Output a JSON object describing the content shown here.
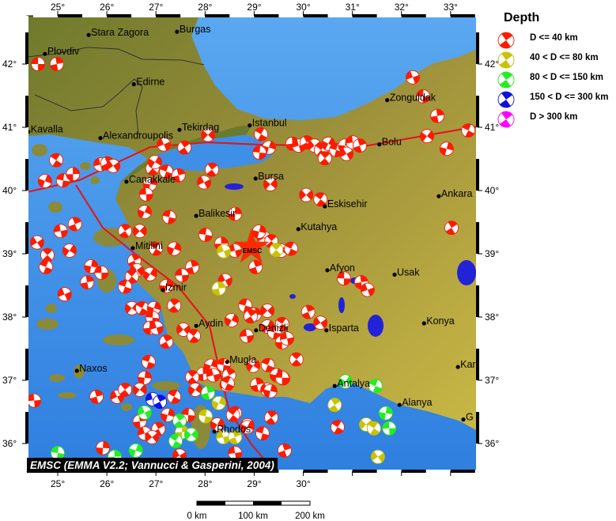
{
  "map": {
    "lon_range": [
      24.37,
      33.55
    ],
    "lat_range": [
      35.56,
      42.76
    ],
    "land_color": "#8a8a3a",
    "sea_color": "#3f8fe6",
    "fault_color": "#e8101a"
  },
  "axes": {
    "lon_ticks": [
      25,
      26,
      27,
      28,
      29,
      30,
      31,
      32,
      33
    ],
    "lon_labels": [
      "25°",
      "26°",
      "27°",
      "28°",
      "29°",
      "30°",
      "31°",
      "32°",
      "33°"
    ],
    "lat_ticks": [
      42,
      41,
      40,
      39,
      38,
      37,
      36
    ],
    "lat_labels": [
      "42°",
      "41°",
      "40°",
      "39°",
      "38°",
      "37°",
      "36°"
    ]
  },
  "legend": {
    "title": "Depth",
    "items": [
      {
        "label": "D <= 40 km",
        "color": "#ff1a00"
      },
      {
        "label": "40 < D <= 80 km",
        "color": "#c8c400"
      },
      {
        "label": "80 < D <= 150 km",
        "color": "#22ee22"
      },
      {
        "label": "150 < D <= 300 km",
        "color": "#1010e0"
      },
      {
        "label": "D > 300 km",
        "color": "#ff00ff"
      }
    ]
  },
  "cities": [
    {
      "name": "Stara Zagora",
      "lon": 25.63,
      "lat": 42.46
    },
    {
      "name": "Burgas",
      "lon": 27.43,
      "lat": 42.51
    },
    {
      "name": "Plovdiv",
      "lon": 24.74,
      "lat": 42.16
    },
    {
      "name": "Edirne",
      "lon": 26.55,
      "lat": 41.68
    },
    {
      "name": "Kavalla",
      "lon": 24.4,
      "lat": 40.93
    },
    {
      "name": "Alexandroupolis",
      "lon": 25.87,
      "lat": 40.83
    },
    {
      "name": "Tekirdag",
      "lon": 27.48,
      "lat": 40.96
    },
    {
      "name": "Istanbul",
      "lon": 28.91,
      "lat": 41.03
    },
    {
      "name": "Zonguldak",
      "lon": 31.71,
      "lat": 41.43
    },
    {
      "name": "Bolu",
      "lon": 31.55,
      "lat": 40.73
    },
    {
      "name": "Ankara",
      "lon": 32.76,
      "lat": 39.91
    },
    {
      "name": "Eskisehir",
      "lon": 30.44,
      "lat": 39.75
    },
    {
      "name": "Bursa",
      "lon": 29.03,
      "lat": 40.19
    },
    {
      "name": "Canakkale",
      "lon": 26.4,
      "lat": 40.14
    },
    {
      "name": "Balikesir",
      "lon": 27.82,
      "lat": 39.6
    },
    {
      "name": "Kutahya",
      "lon": 29.9,
      "lat": 39.39
    },
    {
      "name": "Mitilini",
      "lon": 26.53,
      "lat": 39.09
    },
    {
      "name": "Izmir",
      "lon": 27.14,
      "lat": 38.43
    },
    {
      "name": "Afyon",
      "lon": 30.49,
      "lat": 38.74
    },
    {
      "name": "Usak",
      "lon": 31.86,
      "lat": 38.67
    },
    {
      "name": "Aydin",
      "lon": 27.82,
      "lat": 37.86
    },
    {
      "name": "Denizli",
      "lon": 29.04,
      "lat": 37.79
    },
    {
      "name": "Isparta",
      "lon": 30.47,
      "lat": 37.79
    },
    {
      "name": "Konya",
      "lon": 32.46,
      "lat": 37.9
    },
    {
      "name": "Mugla",
      "lon": 28.45,
      "lat": 37.29
    },
    {
      "name": "Naxos",
      "lon": 25.39,
      "lat": 37.15
    },
    {
      "name": "Rhodos",
      "lon": 28.19,
      "lat": 36.19
    },
    {
      "name": "Antalya",
      "lon": 30.64,
      "lat": 36.91
    },
    {
      "name": "Alanya",
      "lon": 31.96,
      "lat": 36.61
    },
    {
      "name": "Karaman",
      "lon": 33.15,
      "lat": 37.21
    },
    {
      "name": "G",
      "lon": 33.26,
      "lat": 36.38
    }
  ],
  "epicenter": {
    "label": "EMSC",
    "lon": 28.94,
    "lat": 39.1
  },
  "events": [
    [
      24.6,
      42.0,
      0
    ],
    [
      24.98,
      42.0,
      0
    ],
    [
      27.16,
      40.73,
      0
    ],
    [
      27.58,
      40.68,
      0
    ],
    [
      28.06,
      40.88,
      0
    ],
    [
      24.97,
      40.48,
      0
    ],
    [
      24.74,
      40.15,
      0
    ],
    [
      25.11,
      40.16,
      0
    ],
    [
      25.31,
      40.26,
      0
    ],
    [
      25.87,
      40.41,
      0
    ],
    [
      26.01,
      40.43,
      0
    ],
    [
      26.13,
      40.39,
      0
    ],
    [
      26.93,
      40.35,
      0
    ],
    [
      26.98,
      40.45,
      0
    ],
    [
      27.21,
      40.3,
      0
    ],
    [
      26.88,
      40.1,
      0
    ],
    [
      26.8,
      39.94,
      0
    ],
    [
      27.46,
      40.24,
      0
    ],
    [
      27.98,
      40.13,
      0
    ],
    [
      28.14,
      40.33,
      0
    ],
    [
      29.33,
      40.1,
      0
    ],
    [
      29.14,
      40.89,
      0
    ],
    [
      29.3,
      40.68,
      0
    ],
    [
      29.11,
      40.6,
      0
    ],
    [
      29.78,
      40.74,
      0
    ],
    [
      29.91,
      40.71,
      0
    ],
    [
      30.07,
      40.76,
      0
    ],
    [
      30.23,
      40.71,
      0
    ],
    [
      30.36,
      40.64,
      0
    ],
    [
      30.51,
      40.74,
      0
    ],
    [
      30.67,
      40.64,
      0
    ],
    [
      30.85,
      40.71,
      0
    ],
    [
      31.01,
      40.76,
      0
    ],
    [
      31.15,
      40.71,
      0
    ],
    [
      30.88,
      40.58,
      0
    ],
    [
      30.44,
      40.51,
      0
    ],
    [
      32.52,
      40.86,
      0
    ],
    [
      33.36,
      40.95,
      0
    ],
    [
      32.92,
      40.66,
      0
    ],
    [
      32.44,
      41.49,
      0
    ],
    [
      32.73,
      41.18,
      0
    ],
    [
      32.23,
      41.79,
      0
    ],
    [
      33.02,
      39.41,
      0
    ],
    [
      30.06,
      39.93,
      0
    ],
    [
      30.35,
      39.86,
      0
    ],
    [
      26.77,
      39.66,
      0
    ],
    [
      27.27,
      39.58,
      0
    ],
    [
      28.61,
      39.63,
      0
    ],
    [
      25.06,
      39.36,
      0
    ],
    [
      25.35,
      39.47,
      0
    ],
    [
      24.58,
      39.18,
      0
    ],
    [
      24.79,
      38.98,
      0
    ],
    [
      25.24,
      39.05,
      0
    ],
    [
      24.76,
      38.79,
      0
    ],
    [
      25.68,
      38.8,
      0
    ],
    [
      25.89,
      38.7,
      0
    ],
    [
      25.6,
      38.55,
      0
    ],
    [
      25.14,
      38.36,
      0
    ],
    [
      26.37,
      39.36,
      0
    ],
    [
      26.67,
      39.36,
      0
    ],
    [
      27.0,
      39.08,
      0
    ],
    [
      27.37,
      39.08,
      0
    ],
    [
      28.01,
      39.3,
      0
    ],
    [
      28.33,
      39.16,
      0
    ],
    [
      28.61,
      39.05,
      0
    ],
    [
      26.56,
      38.89,
      0
    ],
    [
      26.61,
      38.74,
      0
    ],
    [
      26.51,
      38.64,
      0
    ],
    [
      26.88,
      38.68,
      0
    ],
    [
      26.37,
      38.48,
      0
    ],
    [
      27.21,
      38.49,
      0
    ],
    [
      27.53,
      38.66,
      0
    ],
    [
      27.74,
      38.79,
      0
    ],
    [
      28.41,
      38.58,
      0
    ],
    [
      27.37,
      38.18,
      0
    ],
    [
      26.51,
      38.14,
      0
    ],
    [
      26.72,
      38.14,
      0
    ],
    [
      26.96,
      38.14,
      0
    ],
    [
      26.93,
      37.99,
      0
    ],
    [
      26.88,
      37.83,
      0
    ],
    [
      27.01,
      37.83,
      0
    ],
    [
      27.21,
      37.61,
      0
    ],
    [
      27.56,
      37.8,
      0
    ],
    [
      27.77,
      37.7,
      0
    ],
    [
      28.54,
      37.95,
      0
    ],
    [
      28.82,
      38.18,
      0
    ],
    [
      29.01,
      38.04,
      0
    ],
    [
      28.85,
      37.7,
      0
    ],
    [
      29.03,
      38.79,
      0
    ],
    [
      29.2,
      39.25,
      0
    ],
    [
      29.35,
      39.2,
      0
    ],
    [
      29.55,
      39.05,
      0
    ],
    [
      29.75,
      39.08,
      0
    ],
    [
      29.1,
      39.35,
      0
    ],
    [
      30.83,
      38.61,
      0
    ],
    [
      31.18,
      38.55,
      0
    ],
    [
      31.31,
      38.43,
      0
    ],
    [
      28.93,
      38.01,
      0
    ],
    [
      29.27,
      38.1,
      0
    ],
    [
      29.57,
      37.89,
      0
    ],
    [
      29.27,
      37.85,
      0
    ],
    [
      29.41,
      37.76,
      0
    ],
    [
      29.57,
      37.6,
      0
    ],
    [
      29.67,
      37.66,
      0
    ],
    [
      30.1,
      38.08,
      0
    ],
    [
      30.35,
      37.91,
      0
    ],
    [
      29.86,
      37.33,
      0
    ],
    [
      28.98,
      37.23,
      0
    ],
    [
      29.28,
      37.24,
      0
    ],
    [
      29.46,
      37.08,
      0
    ],
    [
      29.59,
      37.03,
      0
    ],
    [
      29.06,
      36.93,
      0
    ],
    [
      29.27,
      36.85,
      0
    ],
    [
      29.35,
      36.41,
      0
    ],
    [
      28.86,
      36.29,
      0
    ],
    [
      30.7,
      36.26,
      0
    ],
    [
      28.12,
      37.23,
      0
    ],
    [
      28.38,
      37.24,
      0
    ],
    [
      27.96,
      37.1,
      0
    ],
    [
      28.17,
      37.08,
      0
    ],
    [
      28.49,
      37.08,
      0
    ],
    [
      28.44,
      36.93,
      0
    ],
    [
      28.61,
      36.48,
      0
    ],
    [
      28.25,
      36.3,
      0
    ],
    [
      26.85,
      37.29,
      0
    ],
    [
      26.77,
      37.04,
      0
    ],
    [
      24.52,
      36.68,
      0
    ],
    [
      25.79,
      36.74,
      0
    ],
    [
      26.21,
      36.74,
      0
    ],
    [
      26.37,
      36.85,
      0
    ],
    [
      26.67,
      36.85,
      0
    ],
    [
      27.37,
      36.74,
      0
    ],
    [
      27.24,
      36.45,
      0
    ],
    [
      27.66,
      36.45,
      0
    ],
    [
      26.67,
      36.35,
      0
    ],
    [
      26.77,
      36.16,
      0
    ],
    [
      27.05,
      36.23,
      0
    ],
    [
      26.92,
      36.1,
      0
    ],
    [
      28.57,
      36.45,
      0
    ],
    [
      28.86,
      36.26,
      0
    ],
    [
      29.17,
      36.16,
      0
    ],
    [
      25.92,
      35.93,
      0
    ],
    [
      28.61,
      35.85,
      0
    ],
    [
      29.62,
      35.89,
      0
    ],
    [
      27.48,
      35.81,
      0
    ],
    [
      27.74,
      37.05,
      0
    ],
    [
      27.8,
      36.85,
      0
    ],
    [
      28.46,
      36.95,
      0
    ],
    [
      29.33,
      36.83,
      0
    ],
    [
      29.57,
      37.04,
      0
    ],
    [
      28.28,
      38.45,
      1
    ],
    [
      28.38,
      39.04,
      1
    ],
    [
      30.64,
      36.61,
      1
    ],
    [
      31.28,
      36.3,
      1
    ],
    [
      31.44,
      36.24,
      1
    ],
    [
      28.28,
      36.64,
      1
    ],
    [
      28.01,
      36.43,
      1
    ],
    [
      27.53,
      36.18,
      1
    ],
    [
      28.37,
      36.1,
      1
    ],
    [
      28.61,
      36.1,
      1
    ],
    [
      31.52,
      35.79,
      1
    ],
    [
      29.45,
      39.06,
      1
    ],
    [
      30.86,
      36.98,
      2
    ],
    [
      31.47,
      36.91,
      2
    ],
    [
      31.68,
      36.48,
      2
    ],
    [
      31.75,
      36.24,
      2
    ],
    [
      28.06,
      36.8,
      2
    ],
    [
      26.77,
      36.49,
      2
    ],
    [
      27.48,
      36.36,
      2
    ],
    [
      27.72,
      36.14,
      2
    ],
    [
      27.4,
      36.04,
      2
    ],
    [
      26.59,
      35.89,
      2
    ],
    [
      25.0,
      35.85,
      2
    ],
    [
      26.16,
      35.79,
      2
    ],
    [
      26.93,
      36.7,
      3
    ],
    [
      27.08,
      36.66,
      3
    ]
  ],
  "credit": "EMSC (EMMA V2.2; Vannucci & Gasperini, 2004)",
  "scale_bar": {
    "labels": [
      "0 km",
      "100 km",
      "200 km"
    ]
  }
}
